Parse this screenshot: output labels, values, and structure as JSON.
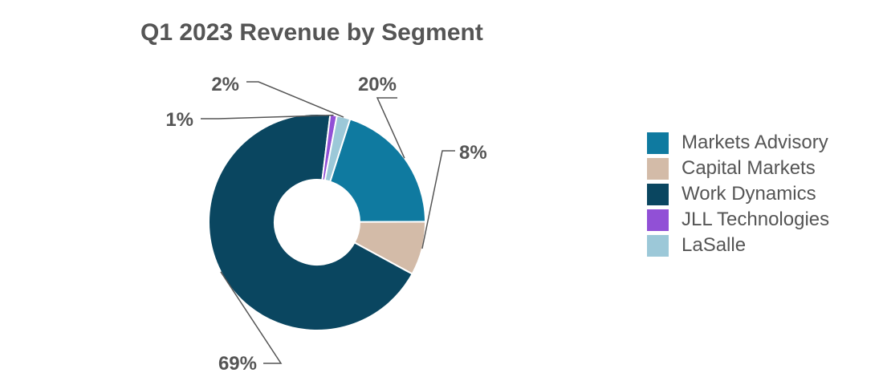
{
  "chart_data": {
    "type": "pie",
    "title": "Q1 2023 Revenue by Segment",
    "donut": true,
    "legend_position": "right",
    "slices": [
      {
        "name": "Markets Advisory",
        "value": 20,
        "label": "20%",
        "color": "#0f7aa0"
      },
      {
        "name": "Capital Markets",
        "value": 8,
        "label": "8%",
        "color": "#d3bba8"
      },
      {
        "name": "Work Dynamics",
        "value": 69,
        "label": "69%",
        "color": "#0a4660"
      },
      {
        "name": "JLL Technologies",
        "value": 1,
        "label": "1%",
        "color": "#9150d6"
      },
      {
        "name": "LaSalle",
        "value": 2,
        "label": "2%",
        "color": "#9cc8d8"
      }
    ]
  }
}
